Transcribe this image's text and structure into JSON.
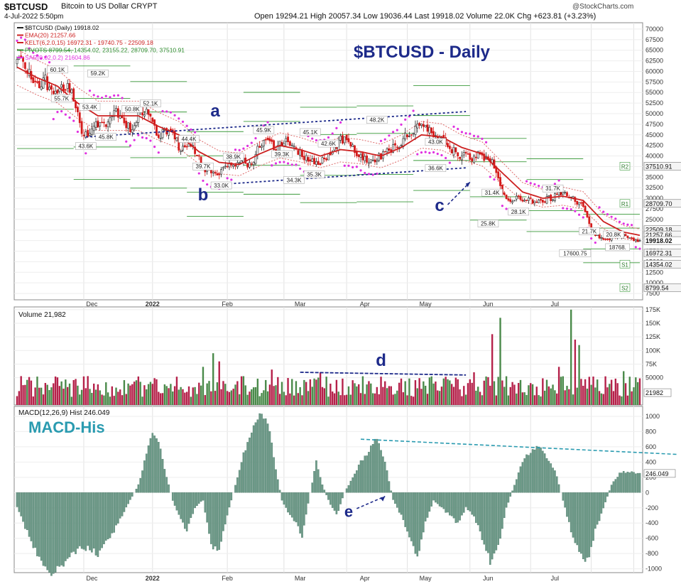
{
  "header": {
    "symbol": "$BTCUSD",
    "name": "Bitcoin to US Dollar CRYPT",
    "datetime": "4-Jul-2022 5:50pm",
    "stats": "Open 19294.21 High 20057.34 Low 19036.44 Last 19918.02 Volume 22.0K Chg +623.81 (+3.23%)",
    "brand": "@StockCharts.com"
  },
  "chart_data": [
    {
      "type": "candlestick",
      "title": "$BTCUSD - Daily",
      "legend": [
        {
          "label": "$BTCUSD (Daily) 19918.02",
          "color": "#222222"
        },
        {
          "label": "EMA(20) 21257.66",
          "color": "#cc2222"
        },
        {
          "label": "KELT(6,2.0,15) 16972.31 - 19740.75 - 22509.18",
          "color": "#cc2222"
        },
        {
          "label": "PIVOTS 8799.54, 14354.02, 23155.22, 28709.70, 37510.91",
          "color": "#2a8a2a"
        },
        {
          "label": "SAR(0.02,0.2) 21604.86",
          "color": "#e030e0"
        }
      ],
      "x_ticks": [
        "Dec",
        "2022",
        "Feb",
        "Mar",
        "Apr",
        "May",
        "Jun",
        "Jul"
      ],
      "y_ticks": [
        7500,
        10000,
        12500,
        15000,
        17500,
        20000,
        22500,
        25000,
        27500,
        30000,
        32500,
        35000,
        37500,
        40000,
        42500,
        45000,
        47500,
        50000,
        52500,
        55000,
        57500,
        60000,
        62500,
        65000,
        67500,
        70000
      ],
      "y_tick_labels": [
        "7500",
        "10000",
        "12500",
        "15000",
        "17500",
        "20000",
        "22500",
        "25000",
        "27500",
        "30000",
        "32500",
        "35000",
        "37500",
        "40000",
        "42500",
        "45000",
        "47500",
        "50000",
        "52500",
        "55000",
        "57500",
        "60000",
        "62500",
        "65000",
        "67500",
        "70000"
      ],
      "ylim": [
        6000,
        71500
      ],
      "path": [
        [
          0,
          62000
        ],
        [
          3,
          63000
        ],
        [
          6,
          60000
        ],
        [
          10,
          56500
        ],
        [
          14,
          58000
        ],
        [
          18,
          53400
        ],
        [
          22,
          57000
        ],
        [
          26,
          56000
        ],
        [
          30,
          50000
        ],
        [
          33,
          44000
        ],
        [
          37,
          47000
        ],
        [
          41,
          48000
        ],
        [
          45,
          47500
        ],
        [
          49,
          50500
        ],
        [
          53,
          48000
        ],
        [
          56,
          46500
        ],
        [
          60,
          50000
        ],
        [
          64,
          51000
        ],
        [
          67,
          47000
        ],
        [
          70,
          45000
        ],
        [
          73,
          46000
        ],
        [
          77,
          46500
        ],
        [
          80,
          42000
        ],
        [
          84,
          42500
        ],
        [
          88,
          41500
        ],
        [
          92,
          37500
        ],
        [
          96,
          36000
        ],
        [
          100,
          35500
        ],
        [
          104,
          38000
        ],
        [
          108,
          37500
        ],
        [
          112,
          38500
        ],
        [
          116,
          38000
        ],
        [
          120,
          43000
        ],
        [
          124,
          44000
        ],
        [
          128,
          42000
        ],
        [
          132,
          43500
        ],
        [
          136,
          42500
        ],
        [
          140,
          40500
        ],
        [
          144,
          39500
        ],
        [
          148,
          38500
        ],
        [
          152,
          39000
        ],
        [
          156,
          41500
        ],
        [
          160,
          44000
        ],
        [
          164,
          43000
        ],
        [
          168,
          41000
        ],
        [
          172,
          39500
        ],
        [
          176,
          39000
        ],
        [
          180,
          40000
        ],
        [
          184,
          41000
        ],
        [
          188,
          42500
        ],
        [
          192,
          44500
        ],
        [
          196,
          46500
        ],
        [
          200,
          47000
        ],
        [
          204,
          46000
        ],
        [
          208,
          45000
        ],
        [
          212,
          43500
        ],
        [
          216,
          41000
        ],
        [
          220,
          40000
        ],
        [
          224,
          39500
        ],
        [
          228,
          40500
        ],
        [
          232,
          39500
        ],
        [
          236,
          38000
        ],
        [
          240,
          31000
        ],
        [
          244,
          29500
        ],
        [
          248,
          30000
        ],
        [
          252,
          29500
        ],
        [
          256,
          29000
        ],
        [
          260,
          29500
        ],
        [
          264,
          30000
        ],
        [
          268,
          31500
        ],
        [
          272,
          30500
        ],
        [
          276,
          29500
        ],
        [
          280,
          28000
        ],
        [
          284,
          22500
        ],
        [
          288,
          20500
        ],
        [
          292,
          20000
        ],
        [
          296,
          21000
        ],
        [
          300,
          21500
        ],
        [
          304,
          20500
        ],
        [
          308,
          19918
        ]
      ],
      "ema_path": [
        [
          0,
          61000
        ],
        [
          10,
          58500
        ],
        [
          20,
          56500
        ],
        [
          30,
          52500
        ],
        [
          40,
          49500
        ],
        [
          50,
          49500
        ],
        [
          60,
          49500
        ],
        [
          70,
          47000
        ],
        [
          80,
          45000
        ],
        [
          90,
          41000
        ],
        [
          100,
          38500
        ],
        [
          110,
          38000
        ],
        [
          120,
          40500
        ],
        [
          130,
          42500
        ],
        [
          140,
          41500
        ],
        [
          150,
          40000
        ],
        [
          160,
          41500
        ],
        [
          170,
          41000
        ],
        [
          180,
          40000
        ],
        [
          190,
          42000
        ],
        [
          200,
          45000
        ],
        [
          210,
          44500
        ],
        [
          220,
          42000
        ],
        [
          230,
          40500
        ],
        [
          240,
          36000
        ],
        [
          250,
          31500
        ],
        [
          260,
          30000
        ],
        [
          270,
          30500
        ],
        [
          280,
          29500
        ],
        [
          290,
          24500
        ],
        [
          300,
          22000
        ],
        [
          308,
          21258
        ]
      ],
      "labels": [
        {
          "t": 20,
          "v": 60100,
          "text": "60.1K"
        },
        {
          "t": 40,
          "v": 59200,
          "text": "59.2K"
        },
        {
          "t": 22,
          "v": 53300,
          "text": "55.7K"
        },
        {
          "t": 36,
          "v": 51300,
          "text": "53.4K"
        },
        {
          "t": 57,
          "v": 50800,
          "text": "50.8K"
        },
        {
          "t": 66,
          "v": 52100,
          "text": "52.1K"
        },
        {
          "t": 44,
          "v": 44200,
          "text": "45.8K"
        },
        {
          "t": 34,
          "v": 42000,
          "text": "43.6K"
        },
        {
          "t": 85,
          "v": 43700,
          "text": "44.4K"
        },
        {
          "t": 92,
          "v": 37200,
          "text": "39.7K"
        },
        {
          "t": 107,
          "v": 39500,
          "text": "38.9K"
        },
        {
          "t": 101,
          "v": 32700,
          "text": "33.0K"
        },
        {
          "t": 122,
          "v": 45800,
          "text": "45.9K"
        },
        {
          "t": 131,
          "v": 40100,
          "text": "39.3K"
        },
        {
          "t": 145,
          "v": 45300,
          "text": "45.1K"
        },
        {
          "t": 154,
          "v": 42600,
          "text": "42.6K"
        },
        {
          "t": 137,
          "v": 34000,
          "text": "34.3K"
        },
        {
          "t": 147,
          "v": 35300,
          "text": "35.3K"
        },
        {
          "t": 178,
          "v": 48200,
          "text": "48.2K"
        },
        {
          "t": 207,
          "v": 43000,
          "text": "43.0K"
        },
        {
          "t": 207,
          "v": 36800,
          "text": "36.6K"
        },
        {
          "t": 235,
          "v": 31000,
          "text": "31.4K"
        },
        {
          "t": 233,
          "v": 23700,
          "text": "25.8K"
        },
        {
          "t": 248,
          "v": 26500,
          "text": "28.1K"
        },
        {
          "t": 265,
          "v": 32000,
          "text": "31.7K"
        },
        {
          "t": 283,
          "v": 21900,
          "text": "21.7K"
        },
        {
          "t": 295,
          "v": 21100,
          "text": "20.8K"
        },
        {
          "t": 276,
          "v": 16700,
          "text": "17600.75"
        },
        {
          "t": 297,
          "v": 18100,
          "text": "18768."
        }
      ],
      "price_labels": [
        {
          "v": 37510,
          "text": "37510.91",
          "tag": "R2"
        },
        {
          "v": 28709,
          "text": "28709.70",
          "tag": "R1"
        },
        {
          "v": 22509,
          "text": "22509.18",
          "tag": ""
        },
        {
          "v": 21257,
          "text": "21257.66",
          "tag": ""
        },
        {
          "v": 19918,
          "text": "19918.02",
          "tag": ""
        },
        {
          "v": 16972,
          "text": "16972.31",
          "tag": ""
        },
        {
          "v": 14354,
          "text": "14354.02",
          "tag": "S1"
        },
        {
          "v": 8799,
          "text": "8799.54",
          "tag": "S2"
        }
      ],
      "annotations": [
        {
          "text": "a",
          "t": 98,
          "v": 49300
        },
        {
          "text": "b",
          "t": 92,
          "v": 29500
        },
        {
          "text": "c",
          "t": 209,
          "v": 27000
        },
        {
          "text": "d",
          "t": 180,
          "v": 90000
        },
        {
          "text": "e",
          "t": 168,
          "v": -380
        }
      ]
    },
    {
      "type": "bar",
      "title": "Volume 21,982",
      "y_ticks": [
        50000,
        75000,
        100000,
        125000,
        150000,
        175000
      ],
      "y_tick_labels": [
        "50000",
        "75K",
        "100K",
        "125K",
        "150K",
        "175K"
      ],
      "ylim": [
        0,
        180000
      ],
      "last_label": "21982",
      "spikes": [
        [
          97,
          95000
        ],
        [
          235,
          130000
        ],
        [
          239,
          160000
        ],
        [
          274,
          175000
        ],
        [
          276,
          120000
        ],
        [
          278,
          110000
        ],
        [
          92,
          70000
        ],
        [
          100,
          80000
        ],
        [
          126,
          65000
        ],
        [
          150,
          60000
        ],
        [
          226,
          60000
        ],
        [
          300,
          62000
        ],
        [
          268,
          70000
        ]
      ]
    },
    {
      "type": "bar",
      "title": "MACD(12,26,9) Hist 246.049",
      "subtitle": "MACD-His",
      "y_ticks": [
        -1000,
        -800,
        -600,
        -400,
        -200,
        0,
        200,
        400,
        600,
        800,
        1000
      ],
      "y_tick_labels": [
        "-1000",
        "-800",
        "-600",
        "-400",
        "-200",
        "0",
        "200",
        "400",
        "600",
        "800",
        "1000"
      ],
      "ylim": [
        -1050,
        1130
      ],
      "last_label": "246.049",
      "path": [
        [
          0,
          -200
        ],
        [
          8,
          -700
        ],
        [
          16,
          -1050
        ],
        [
          24,
          -900
        ],
        [
          32,
          -700
        ],
        [
          40,
          -800
        ],
        [
          48,
          -500
        ],
        [
          56,
          -100
        ],
        [
          60,
          100
        ],
        [
          64,
          500
        ],
        [
          67,
          780
        ],
        [
          70,
          700
        ],
        [
          74,
          200
        ],
        [
          77,
          -100
        ],
        [
          80,
          -300
        ],
        [
          84,
          -500
        ],
        [
          88,
          -200
        ],
        [
          92,
          -100
        ],
        [
          96,
          -700
        ],
        [
          100,
          -750
        ],
        [
          104,
          -300
        ],
        [
          108,
          100
        ],
        [
          112,
          500
        ],
        [
          117,
          900
        ],
        [
          121,
          1050
        ],
        [
          125,
          800
        ],
        [
          128,
          300
        ],
        [
          131,
          -100
        ],
        [
          135,
          -300
        ],
        [
          138,
          -400
        ],
        [
          141,
          -600
        ],
        [
          145,
          0
        ],
        [
          148,
          400
        ],
        [
          151,
          100
        ],
        [
          154,
          -100
        ],
        [
          158,
          -300
        ],
        [
          162,
          0
        ],
        [
          166,
          200
        ],
        [
          170,
          400
        ],
        [
          174,
          550
        ],
        [
          178,
          700
        ],
        [
          182,
          400
        ],
        [
          186,
          -100
        ],
        [
          190,
          -300
        ],
        [
          194,
          -600
        ],
        [
          198,
          -850
        ],
        [
          202,
          -400
        ],
        [
          206,
          -100
        ],
        [
          210,
          -200
        ],
        [
          214,
          -300
        ],
        [
          218,
          -400
        ],
        [
          222,
          -200
        ],
        [
          226,
          -300
        ],
        [
          230,
          -600
        ],
        [
          234,
          -900
        ],
        [
          238,
          -700
        ],
        [
          242,
          -200
        ],
        [
          246,
          100
        ],
        [
          250,
          400
        ],
        [
          254,
          550
        ],
        [
          258,
          600
        ],
        [
          262,
          450
        ],
        [
          266,
          300
        ],
        [
          270,
          -100
        ],
        [
          274,
          -500
        ],
        [
          278,
          -800
        ],
        [
          282,
          -900
        ],
        [
          286,
          -500
        ],
        [
          290,
          -200
        ],
        [
          294,
          100
        ],
        [
          298,
          250
        ],
        [
          302,
          280
        ],
        [
          306,
          250
        ],
        [
          308,
          246
        ]
      ]
    }
  ]
}
